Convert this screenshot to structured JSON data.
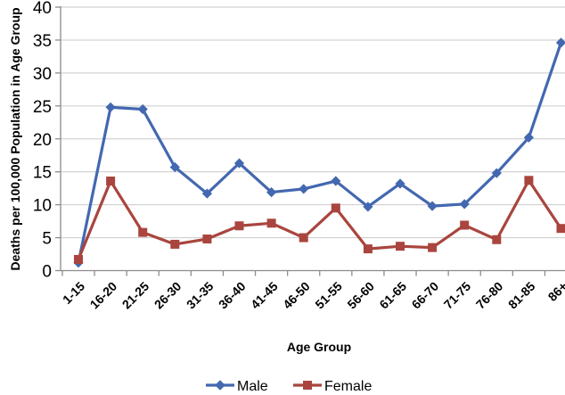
{
  "chart_data": {
    "type": "line",
    "title": "",
    "xlabel": "Age Group",
    "ylabel": "Deaths per 100,000 Population in Age Group",
    "categories": [
      "1-15",
      "16-20",
      "21-25",
      "26-30",
      "31-35",
      "36-40",
      "41-45",
      "46-50",
      "51-55",
      "56-60",
      "61-65",
      "66-70",
      "71-75",
      "76-80",
      "81-85",
      "86+"
    ],
    "series": [
      {
        "name": "Male",
        "color": "#4368B0",
        "marker": "diamond",
        "values": [
          1.2,
          24.8,
          24.5,
          15.7,
          11.7,
          16.3,
          11.9,
          12.4,
          13.6,
          9.7,
          13.2,
          9.8,
          10.1,
          14.8,
          20.2,
          34.6
        ]
      },
      {
        "name": "Female",
        "color": "#A9453E",
        "marker": "square",
        "values": [
          1.7,
          13.6,
          5.8,
          4.0,
          4.8,
          6.8,
          7.2,
          5.0,
          9.5,
          3.3,
          3.7,
          3.5,
          6.9,
          4.7,
          13.7,
          6.4
        ]
      }
    ],
    "ylim": [
      0,
      40
    ],
    "ytick_step": 5,
    "yticks": [
      "0",
      "5",
      "10",
      "15",
      "20",
      "25",
      "30",
      "35",
      "40"
    ],
    "grid": "horizontal",
    "legend_position": "bottom",
    "colors": {
      "gridline": "#C9C9C9",
      "axis": "#8C8C8C",
      "text": "#000000",
      "background": "#FFFFFF"
    }
  }
}
